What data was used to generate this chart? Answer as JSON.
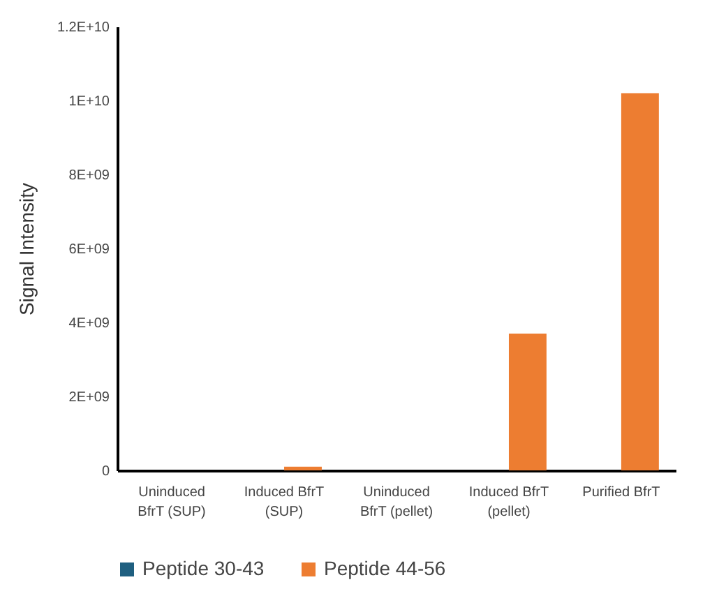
{
  "chart_data": {
    "type": "bar",
    "ylabel": "Signal Intensity",
    "categories": [
      "Uninduced BfrT (SUP)",
      "Induced BfrT (SUP)",
      "Uninduced BfrT (pellet)",
      "Induced BfrT (pellet)",
      "Purified BfrT"
    ],
    "series": [
      {
        "name": "Peptide 30-43",
        "color": "#1f5f80",
        "values": [
          0,
          0,
          0,
          0,
          0
        ]
      },
      {
        "name": "Peptide 44-56",
        "color": "#ed7d31",
        "values": [
          0,
          100000000,
          0,
          3700000000,
          10200000000
        ]
      }
    ],
    "ylim": [
      0,
      12000000000
    ],
    "yticks": [
      0,
      {
        "value": 2000000000,
        "label": "2E+09"
      },
      {
        "value": 4000000000,
        "label": "4E+09"
      },
      {
        "value": 6000000000,
        "label": "6E+09"
      },
      {
        "value": 8000000000,
        "label": "8E+09"
      },
      {
        "value": 10000000000,
        "label": "1E+10"
      },
      {
        "value": 12000000000,
        "label": "1.2E+10"
      }
    ],
    "grid": false,
    "legend": "bottom"
  }
}
